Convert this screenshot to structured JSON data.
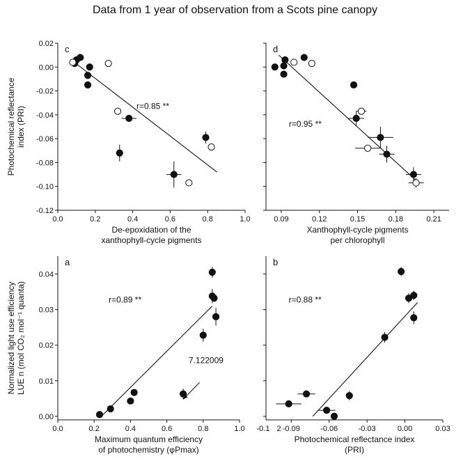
{
  "title": "Data from 1 year of observation from a Scots pine canopy",
  "chart_data": [
    {
      "id": "c",
      "type": "scatter",
      "panel_label": "c",
      "xlabel": [
        "De-epoxidation of the",
        "xanthophyll-cycle pigments"
      ],
      "ylabel": [
        "Photochemical reflectance",
        "index (PRI)"
      ],
      "xlim": [
        0,
        1.0
      ],
      "ylim": [
        -0.12,
        0.02
      ],
      "xticks": [
        0,
        0.2,
        0.4,
        0.6,
        0.8,
        1.0
      ],
      "xtick_labels": [
        "0.0",
        "0.2",
        "0.4",
        "0.6",
        "0.8",
        "1.0"
      ],
      "yticks": [
        0.02,
        0.0,
        -0.02,
        -0.04,
        -0.06,
        -0.08,
        -0.1,
        -0.12
      ],
      "ytick_labels": [
        "0.02",
        "0.00",
        "-0.02",
        "-0.04",
        "-0.06",
        "-0.08",
        "-0.10",
        "-0.12"
      ],
      "annotation": "r=0.85 **",
      "annotation_at": [
        0.42,
        -0.035
      ],
      "fit": [
        [
          0.08,
          0.005
        ],
        [
          0.85,
          -0.088
        ]
      ],
      "series": [
        {
          "filled": true,
          "points": [
            [
              0.1,
              0.006
            ],
            [
              0.12,
              0.008
            ],
            [
              0.09,
              0.003
            ],
            [
              0.17,
              0.0
            ],
            [
              0.16,
              -0.007
            ],
            [
              0.16,
              -0.015
            ],
            [
              0.38,
              -0.043
            ],
            [
              0.33,
              -0.072
            ],
            [
              0.79,
              -0.059
            ],
            [
              0.62,
              -0.09
            ]
          ],
          "xerr": [
            0,
            0,
            0,
            0,
            0,
            0,
            0.04,
            0,
            0,
            0.04
          ],
          "yerr": [
            0,
            0,
            0,
            0,
            0,
            0,
            0,
            0.007,
            0.005,
            0.011
          ]
        },
        {
          "filled": false,
          "points": [
            [
              0.08,
              0.004
            ],
            [
              0.27,
              0.003
            ],
            [
              0.32,
              -0.037
            ],
            [
              0.82,
              -0.067
            ],
            [
              0.7,
              -0.097
            ]
          ],
          "xerr": [
            0,
            0,
            0,
            0,
            0
          ],
          "yerr": [
            0,
            0,
            0,
            0,
            0
          ]
        }
      ]
    },
    {
      "id": "d",
      "type": "scatter",
      "panel_label": "d",
      "xlabel": [
        "Xanthophyll-cycle pigments",
        "per chlorophyll"
      ],
      "ylabel": [],
      "xlim": [
        0.078,
        0.222
      ],
      "ylim": [
        -0.12,
        0.02
      ],
      "xticks": [
        0.09,
        0.12,
        0.15,
        0.18,
        0.21
      ],
      "xtick_labels": [
        "0.09",
        "0.12",
        "0.15",
        "0.18",
        "0.21"
      ],
      "yticks": [
        0.02,
        0.0,
        -0.02,
        -0.04,
        -0.06,
        -0.08,
        -0.1,
        -0.12
      ],
      "ytick_labels": [],
      "annotation": "r=0.95 **",
      "annotation_at": [
        0.096,
        -0.05
      ],
      "fit": [
        [
          0.088,
          0.01
        ],
        [
          0.196,
          -0.095
        ]
      ],
      "series": [
        {
          "filled": true,
          "points": [
            [
              0.085,
              0.0
            ],
            [
              0.093,
              0.006
            ],
            [
              0.092,
              0.001
            ],
            [
              0.092,
              -0.006
            ],
            [
              0.108,
              0.008
            ],
            [
              0.147,
              -0.015
            ],
            [
              0.149,
              -0.043
            ],
            [
              0.168,
              -0.059
            ],
            [
              0.173,
              -0.073
            ],
            [
              0.194,
              -0.09
            ]
          ],
          "xerr": [
            0,
            0,
            0,
            0,
            0,
            0,
            0.006,
            0.01,
            0.006,
            0.006
          ],
          "yerr": [
            0,
            0,
            0,
            0,
            0,
            0,
            0.006,
            0.009,
            0.007,
            0.006
          ]
        },
        {
          "filled": false,
          "points": [
            [
              0.1,
              0.004
            ],
            [
              0.114,
              0.003
            ],
            [
              0.153,
              -0.037
            ],
            [
              0.158,
              -0.068
            ],
            [
              0.196,
              -0.097
            ]
          ],
          "xerr": [
            0,
            0,
            0.004,
            0.01,
            0.006
          ],
          "yerr": [
            0,
            0,
            0,
            0,
            0.004
          ]
        }
      ]
    },
    {
      "id": "a",
      "type": "scatter",
      "panel_label": "a",
      "xlabel": [
        "Maximum quantum efficiency",
        "of photochemistry (φPmax)"
      ],
      "ylabel": [
        "Normalized light use efficiency",
        "LUE n (mol CO₂ mol⁻¹ quanta)"
      ],
      "xlim": [
        0,
        1.0
      ],
      "ylim": [
        -0.001,
        0.045
      ],
      "xticks": [
        0,
        0.2,
        0.4,
        0.6,
        0.8,
        1.0
      ],
      "xtick_labels": [
        "0.0",
        "0.2",
        "0.4",
        "0.6",
        "0.8",
        "1.0"
      ],
      "yticks": [
        0.0,
        0.01,
        0.02,
        0.03,
        0.04
      ],
      "ytick_labels": [
        "0.00",
        "0.01",
        "0.02",
        "0.03",
        "0.04"
      ],
      "annotation": "r=0.89 **",
      "annotation_at": [
        0.28,
        0.032
      ],
      "callout": "7.122009",
      "callout_at": [
        0.72,
        0.015
      ],
      "callout_arrow": [
        [
          0.78,
          0.0095
        ],
        [
          0.69,
          0.0048
        ]
      ],
      "fit": [
        [
          0.24,
          0.0
        ],
        [
          0.85,
          0.031
        ]
      ],
      "series": [
        {
          "filled": true,
          "points": [
            [
              0.23,
              0.0005
            ],
            [
              0.29,
              0.0021
            ],
            [
              0.4,
              0.0043
            ],
            [
              0.42,
              0.0067
            ],
            [
              0.69,
              0.0063
            ],
            [
              0.8,
              0.0228
            ],
            [
              0.85,
              0.0405
            ],
            [
              0.85,
              0.0338
            ],
            [
              0.86,
              0.0332
            ],
            [
              0.87,
              0.028
            ]
          ],
          "xerr": [
            0,
            0,
            0,
            0,
            0,
            0,
            0,
            0,
            0,
            0
          ],
          "yerr": [
            0,
            0,
            0,
            0,
            0.0015,
            0.0018,
            0.0015,
            0.002,
            0,
            0.0025
          ]
        }
      ]
    },
    {
      "id": "b",
      "type": "scatter",
      "panel_label": "b",
      "xlabel": [
        "Photochemical reflectance index",
        "(PRI)"
      ],
      "ylabel": [],
      "xlim": [
        -0.11,
        0.03
      ],
      "ylim": [
        -0.001,
        0.045
      ],
      "xticks": [
        -0.09,
        -0.06,
        -0.03,
        0.0,
        0.03
      ],
      "xtick_labels": [
        "-0.09",
        "-0.06",
        "-0.03",
        "0.00",
        "0.03"
      ],
      "extra_xtick_labels": [
        [
          -0.11,
          "-0.1"
        ],
        [
          -0.102,
          "2"
        ]
      ],
      "yticks": [
        0.0,
        0.01,
        0.02,
        0.03,
        0.04
      ],
      "ytick_labels": [],
      "annotation": "r=0.88 **",
      "annotation_at": [
        -0.092,
        0.032
      ],
      "fit": [
        [
          -0.073,
          0.0
        ],
        [
          0.01,
          0.032
        ]
      ],
      "series": [
        {
          "filled": true,
          "points": [
            [
              -0.092,
              0.0035
            ],
            [
              -0.078,
              0.0063
            ],
            [
              -0.062,
              0.0017
            ],
            [
              -0.056,
              0.0
            ],
            [
              -0.044,
              0.0058
            ],
            [
              -0.016,
              0.0222
            ],
            [
              -0.003,
              0.0407
            ],
            [
              0.003,
              0.0332
            ],
            [
              0.007,
              0.034
            ],
            [
              0.007,
              0.0277
            ]
          ],
          "xerr": [
            0.01,
            0.007,
            0.007,
            0,
            0,
            0,
            0,
            0,
            0,
            0
          ],
          "yerr": [
            0,
            0,
            0,
            0,
            0.0013,
            0.0015,
            0.0013,
            0.0014,
            0.0013,
            0.0018
          ]
        }
      ]
    }
  ]
}
